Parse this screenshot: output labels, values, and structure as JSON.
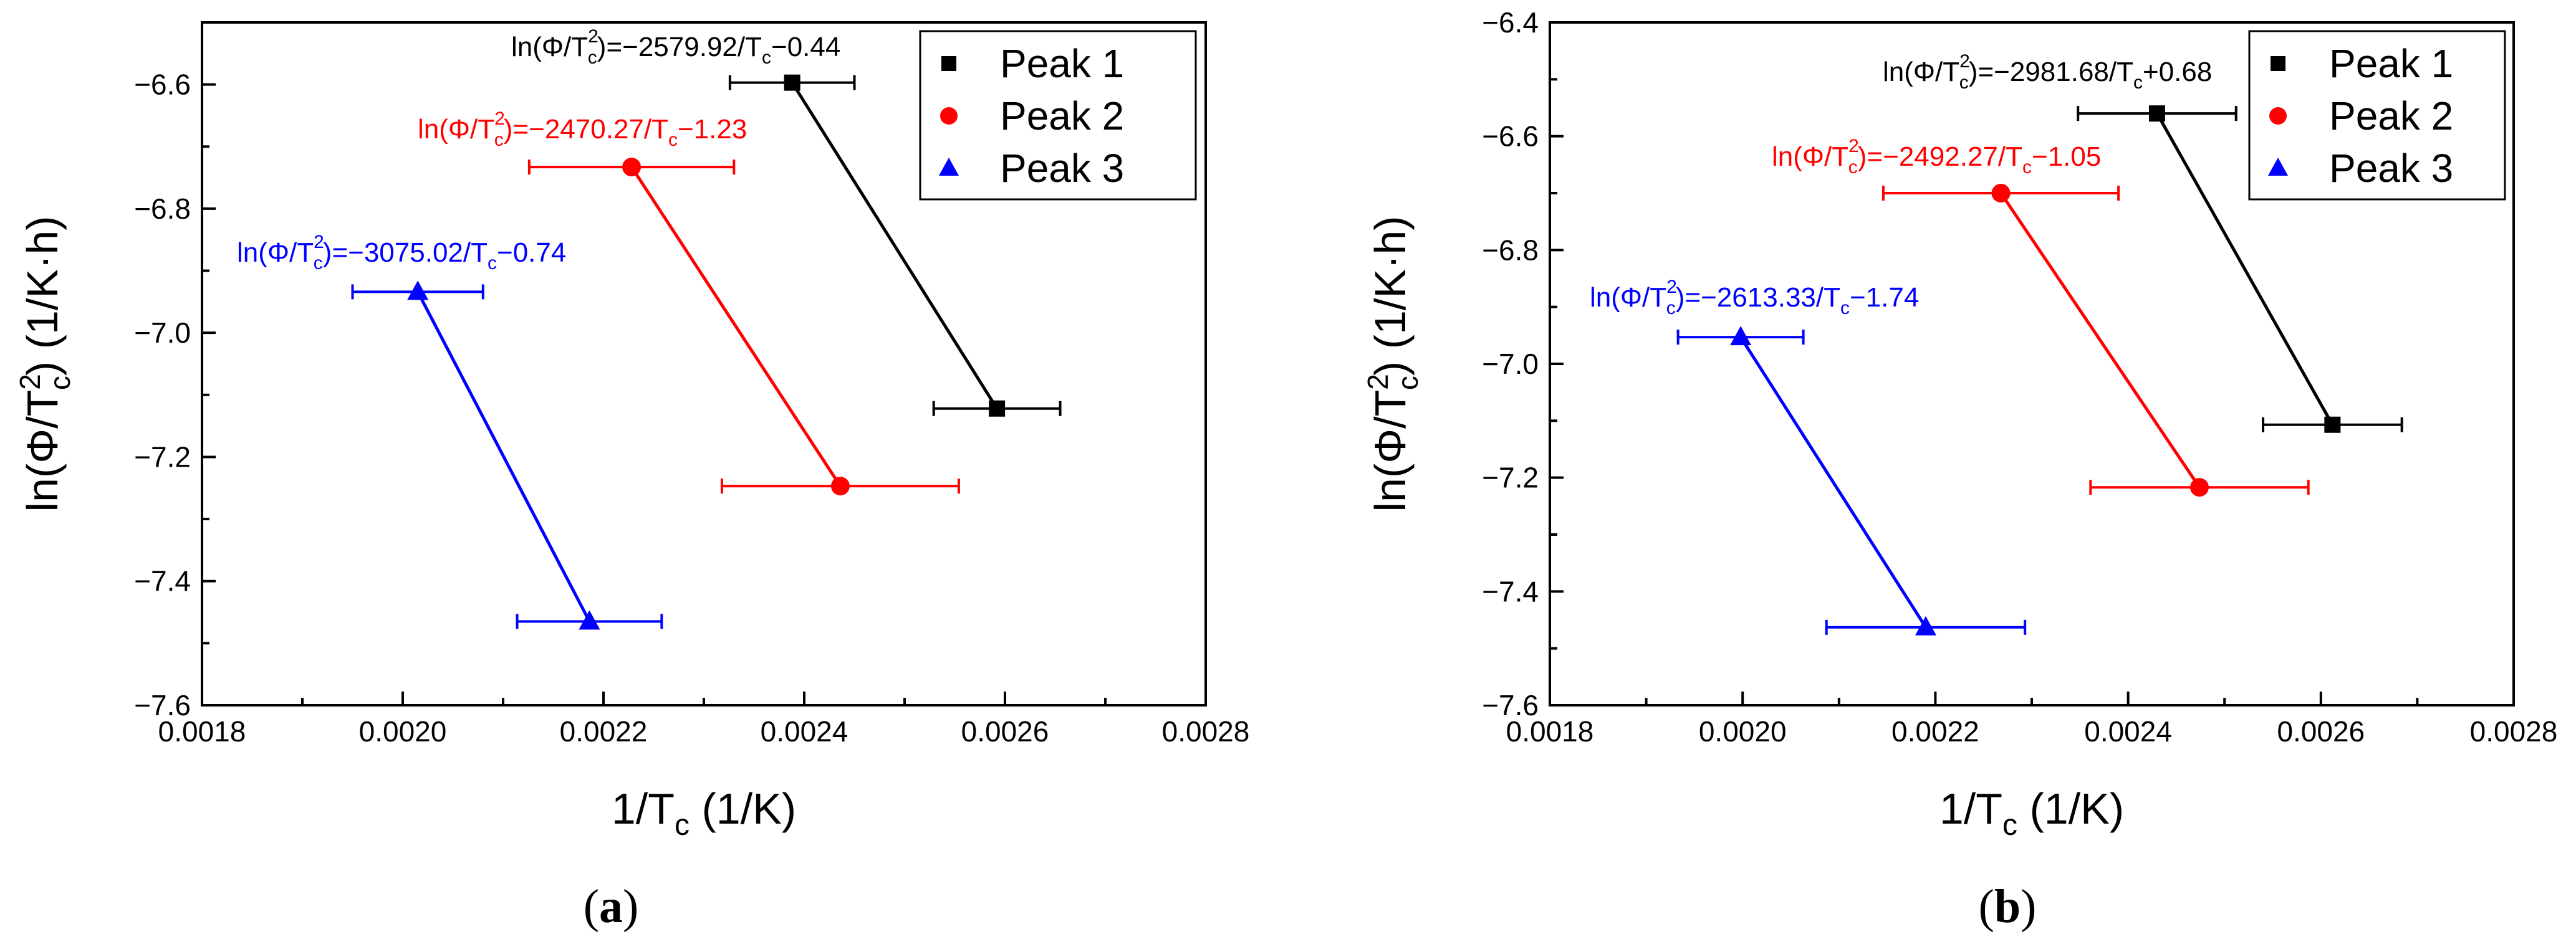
{
  "chart_data": [
    {
      "type": "line",
      "panel_label": "a",
      "xlabel": "1/T_c (1/K)",
      "ylabel": "ln(Φ/T²_c) (1/K·h)",
      "xlim": [
        0.0018,
        0.0028
      ],
      "ylim": [
        -7.6,
        -6.5
      ],
      "xticks": [
        "0.0018",
        "0.0020",
        "0.0022",
        "0.0024",
        "0.0026",
        "0.0028"
      ],
      "yticks": [
        "−6.6",
        "−6.8",
        "−7.0",
        "−7.2",
        "−7.4",
        "−7.6"
      ],
      "legend_position": "top-right",
      "series": [
        {
          "name": "Peak 1",
          "color": "#000000",
          "marker": "square",
          "x": [
            0.002388,
            0.002592
          ],
          "y": [
            -6.597,
            -7.122
          ],
          "xerr": [
            6.2e-05,
            6.3e-05
          ],
          "equation": {
            "prefix": "ln(Φ/T",
            "mid": ")=−2579.92/T",
            "suffix": "−0.44"
          }
        },
        {
          "name": "Peak 2",
          "color": "#ff0000",
          "marker": "circle",
          "x": [
            0.002228,
            0.002436
          ],
          "y": [
            -6.733,
            -7.247
          ],
          "xerr": [
            0.000102,
            0.000118
          ],
          "equation": {
            "prefix": "ln(Φ/T",
            "mid": ")=−2470.27/T",
            "suffix": "−1.23"
          }
        },
        {
          "name": "Peak 3",
          "color": "#0000ff",
          "marker": "triangle",
          "x": [
            0.002015,
            0.002186
          ],
          "y": [
            -6.934,
            -7.465
          ],
          "xerr": [
            6.5e-05,
            7.2e-05
          ],
          "equation": {
            "prefix": "ln(Φ/T",
            "mid": ")=−3075.02/T",
            "suffix": "−0.74"
          }
        }
      ]
    },
    {
      "type": "line",
      "panel_label": "b",
      "xlabel": "1/T_c (1/K)",
      "ylabel": "ln(Φ/T²_c) (1/K·h)",
      "xlim": [
        0.0018,
        0.0028
      ],
      "ylim": [
        -7.6,
        -6.4
      ],
      "xticks": [
        "0.0018",
        "0.0020",
        "0.0022",
        "0.0024",
        "0.0026",
        "0.0028"
      ],
      "yticks": [
        "−6.4",
        "−6.6",
        "−6.8",
        "−7.0",
        "−7.2",
        "−7.4",
        "−7.6"
      ],
      "legend_position": "top-right",
      "series": [
        {
          "name": "Peak 1",
          "color": "#000000",
          "marker": "square",
          "x": [
            0.00243,
            0.002612
          ],
          "y": [
            -6.56,
            -7.107
          ],
          "xerr": [
            8.2e-05,
            7.2e-05
          ],
          "equation": {
            "prefix": "ln(Φ/T",
            "mid": ")=−2981.68/T",
            "suffix": "+0.68"
          }
        },
        {
          "name": "Peak 2",
          "color": "#ff0000",
          "marker": "circle",
          "x": [
            0.002268,
            0.002474
          ],
          "y": [
            -6.7,
            -7.217
          ],
          "xerr": [
            0.000122,
            0.000113
          ],
          "equation": {
            "prefix": "ln(Φ/T",
            "mid": ")=−2492.27/T",
            "suffix": "−1.05"
          }
        },
        {
          "name": "Peak 3",
          "color": "#0000ff",
          "marker": "triangle",
          "x": [
            0.001998,
            0.00219
          ],
          "y": [
            -6.953,
            -7.463
          ],
          "xerr": [
            6.5e-05,
            0.000103
          ],
          "equation": {
            "prefix": "ln(Φ/T",
            "mid": ")=−2613.33/T",
            "suffix": "−1.74"
          }
        }
      ]
    }
  ]
}
